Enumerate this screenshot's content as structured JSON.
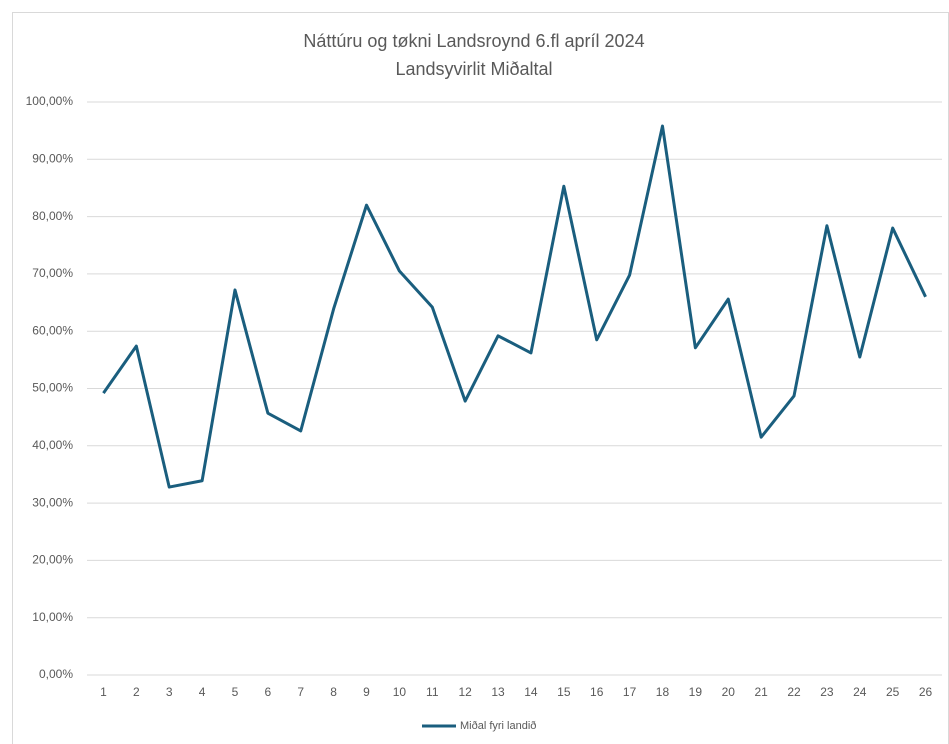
{
  "chart_data": {
    "type": "line",
    "title": "Náttúru og tøkni Landsroynd 6.fl apríl 2024",
    "subtitle": "Landsyvirlit Miðaltal",
    "categories": [
      "1",
      "2",
      "3",
      "4",
      "5",
      "6",
      "7",
      "8",
      "9",
      "10",
      "11",
      "12",
      "13",
      "14",
      "15",
      "16",
      "17",
      "18",
      "19",
      "20",
      "21",
      "22",
      "23",
      "24",
      "25",
      "26"
    ],
    "series": [
      {
        "name": "Miðal fyri landið",
        "color": "#1a5e7e",
        "values": [
          49.2,
          57.4,
          32.8,
          33.9,
          67.2,
          45.7,
          42.6,
          63.9,
          82.0,
          70.5,
          64.2,
          47.8,
          59.2,
          56.2,
          85.3,
          58.5,
          69.8,
          95.8,
          57.1,
          65.6,
          41.5,
          48.7,
          78.4,
          55.5,
          78.0,
          66.0
        ]
      }
    ],
    "ylim": [
      0,
      100
    ],
    "yticks": [
      {
        "value": 0,
        "label": "0,00%"
      },
      {
        "value": 10,
        "label": "10,00%"
      },
      {
        "value": 20,
        "label": "20,00%"
      },
      {
        "value": 30,
        "label": "30,00%"
      },
      {
        "value": 40,
        "label": "40,00%"
      },
      {
        "value": 50,
        "label": "50,00%"
      },
      {
        "value": 60,
        "label": "60,00%"
      },
      {
        "value": 70,
        "label": "70,00%"
      },
      {
        "value": 80,
        "label": "80,00%"
      },
      {
        "value": 90,
        "label": "90,00%"
      },
      {
        "value": 100,
        "label": "100,00%"
      }
    ],
    "grid": true,
    "legend": "bottom"
  }
}
